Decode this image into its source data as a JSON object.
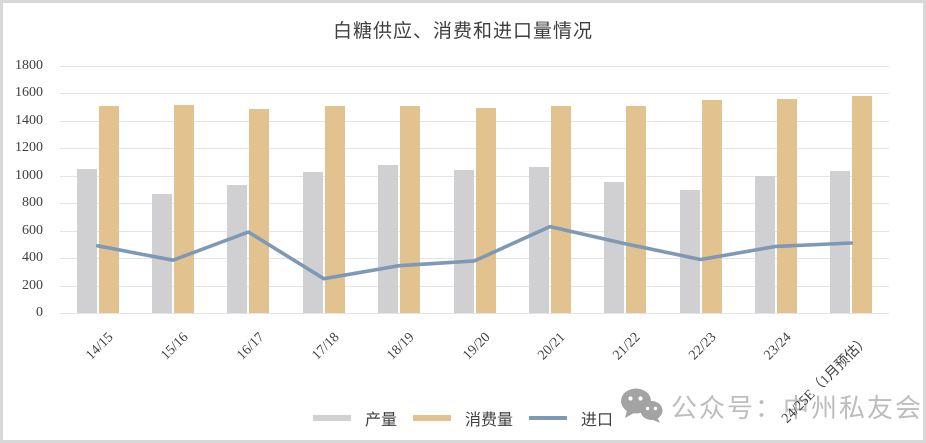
{
  "frame": {
    "border_color": "#d8d8d8",
    "background": "#ffffff"
  },
  "chart_data": {
    "type": "bar+line",
    "title": "白糖供应、消费和进口量情况",
    "categories": [
      "14/15",
      "15/16",
      "16/17",
      "17/18",
      "18/19",
      "19/20",
      "20/21",
      "21/22",
      "22/23",
      "23/24",
      "24/25E（1月预估）"
    ],
    "series": [
      {
        "name": "产量",
        "type": "bar",
        "color": "#d0cfd1",
        "values": [
          1050,
          870,
          930,
          1030,
          1075,
          1040,
          1065,
          955,
          895,
          995,
          1035
        ]
      },
      {
        "name": "消费量",
        "type": "bar",
        "color": "#e2c38f",
        "values": [
          1505,
          1515,
          1485,
          1505,
          1510,
          1495,
          1510,
          1505,
          1550,
          1560,
          1580
        ]
      },
      {
        "name": "进口",
        "type": "line",
        "color": "#7d99b5",
        "values": [
          490,
          385,
          590,
          250,
          345,
          380,
          630,
          505,
          390,
          485,
          510
        ]
      }
    ],
    "ylim": [
      0,
      1800
    ],
    "yticks": [
      0,
      200,
      400,
      600,
      800,
      1000,
      1200,
      1400,
      1600,
      1800
    ],
    "grid": true,
    "gridline_color": "#e4e4e4",
    "axis_text_color": "#404040",
    "legend_position": "bottom"
  },
  "watermark": {
    "icon": "wechat-icon",
    "text": "公众号：中州私友会",
    "color": "#bdbdbd",
    "icon_color": "#a3a3a3"
  }
}
